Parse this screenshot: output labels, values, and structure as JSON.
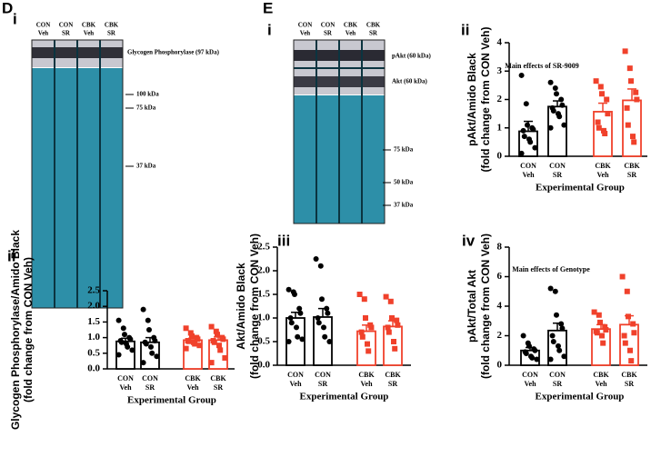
{
  "panels": {
    "D": "D",
    "Di": "i",
    "Dii": "ii",
    "E": "E",
    "Ei": "i",
    "Eii": "ii",
    "Eiii": "iii",
    "Eiv": "iv"
  },
  "blots": [
    {
      "lanes": [
        [
          "CON",
          "Veh"
        ],
        [
          "CON",
          "SR"
        ],
        [
          "CBK",
          "Veh"
        ],
        [
          "CBK",
          "SR"
        ]
      ],
      "bands": [
        "Glycogen Phosphorylase  (97 kDa)"
      ],
      "markers": [
        "100 kDa",
        "75 kDa",
        "37 kDa"
      ]
    },
    {
      "lanes": [
        [
          "CON",
          "Veh"
        ],
        [
          "CON",
          "SR"
        ],
        [
          "CBK",
          "Veh"
        ],
        [
          "CBK",
          "SR"
        ]
      ],
      "bands": [
        "pAkt (60 kDa)",
        "Akt (60 kDa)"
      ],
      "markers": [
        "75 kDa",
        "50 kDa",
        "37 kDa"
      ]
    }
  ],
  "chart_data": [
    {
      "type": "bar",
      "ylabel": [
        "Glycogen Phosphorylase/Amido Black",
        "(fold change from CON Veh)"
      ],
      "xlabel": "Experimental Group",
      "categories": [
        [
          "CON",
          "Veh"
        ],
        [
          "CON",
          "SR"
        ],
        [
          "CBK",
          "Veh"
        ],
        [
          "CBK",
          "SR"
        ]
      ],
      "colors": [
        "#000000",
        "#000000",
        "#f0412b",
        "#f0412b"
      ],
      "markers": [
        "circle",
        "circle",
        "square",
        "square"
      ],
      "values": [
        0.88,
        0.85,
        0.92,
        0.92
      ],
      "errors": [
        0.1,
        0.15,
        0.06,
        0.1
      ],
      "points": [
        [
          1.55,
          1.3,
          1.1,
          1.0,
          0.95,
          0.9,
          0.85,
          0.8,
          0.7,
          0.6,
          0.45
        ],
        [
          1.9,
          1.55,
          1.25,
          1.0,
          0.9,
          0.85,
          0.8,
          0.7,
          0.5,
          0.4,
          0.2
        ],
        [
          1.3,
          1.15,
          1.05,
          1.0,
          0.95,
          0.9,
          0.88,
          0.85,
          0.8,
          0.75,
          0.65
        ],
        [
          1.35,
          1.2,
          1.1,
          1.0,
          0.95,
          0.9,
          0.85,
          0.75,
          0.6,
          0.35,
          0.2
        ]
      ],
      "ylim": [
        0,
        2.5
      ],
      "yticks": [
        {
          "value": 0,
          "label": "0.0"
        },
        0.5,
        {
          "value": 1,
          "label": "1.0"
        },
        1.5,
        {
          "value": 2,
          "label": "2.0"
        },
        2.5
      ]
    },
    {
      "type": "bar",
      "title": "Main effects of SR-9009",
      "ylabel": [
        "pAkt/Amido Black",
        "(fold change from CON Veh)"
      ],
      "xlabel": "Experimental Group",
      "categories": [
        [
          "CON",
          "Veh"
        ],
        [
          "CON",
          "SR"
        ],
        [
          "CBK",
          "Veh"
        ],
        [
          "CBK",
          "SR"
        ]
      ],
      "colors": [
        "#000000",
        "#000000",
        "#f0412b",
        "#f0412b"
      ],
      "markers": [
        "circle",
        "circle",
        "square",
        "square"
      ],
      "values": [
        0.88,
        1.75,
        1.57,
        1.97
      ],
      "errors": [
        0.35,
        0.2,
        0.3,
        0.4
      ],
      "points": [
        [
          2.85,
          1.85,
          1.1,
          1.0,
          0.95,
          0.9,
          0.7,
          0.6,
          0.5,
          0.3,
          0.1
        ],
        [
          2.6,
          2.4,
          2.2,
          2.0,
          1.8,
          1.7,
          1.6,
          1.5,
          1.4,
          1.1,
          1.0
        ],
        [
          2.65,
          2.45,
          2.2,
          2.0,
          1.5,
          1.2,
          1.0,
          0.9,
          0.8
        ],
        [
          3.7,
          3.1,
          2.65,
          2.25,
          2.0,
          1.7,
          1.1,
          0.7,
          0.5
        ]
      ],
      "ylim": [
        0,
        4
      ],
      "yticks": [
        0,
        1,
        2,
        3,
        4
      ]
    },
    {
      "type": "bar",
      "ylabel": [
        "Akt/Amido Black",
        "(fold change from CON Veh)"
      ],
      "xlabel": "Experimental Group",
      "categories": [
        [
          "CON",
          "Veh"
        ],
        [
          "CON",
          "SR"
        ],
        [
          "CBK",
          "Veh"
        ],
        [
          "CBK",
          "SR"
        ]
      ],
      "colors": [
        "#000000",
        "#000000",
        "#f0412b",
        "#f0412b"
      ],
      "markers": [
        "circle",
        "circle",
        "square",
        "square"
      ],
      "values": [
        1.0,
        1.02,
        0.72,
        0.82
      ],
      "errors": [
        0.12,
        0.18,
        0.13,
        0.12
      ],
      "points": [
        [
          1.6,
          1.55,
          1.5,
          1.2,
          1.1,
          1.0,
          0.9,
          0.8,
          0.6,
          0.55,
          0.5
        ],
        [
          2.25,
          2.1,
          1.4,
          1.2,
          1.1,
          1.0,
          0.9,
          0.8,
          0.6,
          0.5
        ],
        [
          1.5,
          1.4,
          1.0,
          0.85,
          0.8,
          0.7,
          0.6,
          0.45,
          0.3
        ],
        [
          1.45,
          1.35,
          1.0,
          0.95,
          0.85,
          0.8,
          0.7,
          0.5,
          0.35
        ]
      ],
      "ylim": [
        0,
        2.5
      ],
      "yticks": [
        {
          "value": 0,
          "label": "0.0"
        },
        0.5,
        {
          "value": 1,
          "label": "1.0"
        },
        1.5,
        {
          "value": 2,
          "label": "2.0"
        },
        2.5
      ]
    },
    {
      "type": "bar",
      "title": "Main effects of Genotype",
      "ylabel": [
        "pAkt/Total Akt",
        "(fold change from CON Veh)"
      ],
      "xlabel": "Experimental Group",
      "categories": [
        [
          "CON",
          "Veh"
        ],
        [
          "CON",
          "SR"
        ],
        [
          "CBK",
          "Veh"
        ],
        [
          "CBK",
          "SR"
        ]
      ],
      "colors": [
        "#000000",
        "#000000",
        "#f0412b",
        "#f0412b"
      ],
      "markers": [
        "circle",
        "circle",
        "square",
        "square"
      ],
      "values": [
        1.0,
        2.35,
        2.45,
        2.75
      ],
      "errors": [
        0.2,
        0.5,
        0.3,
        0.6
      ],
      "points": [
        [
          2.0,
          1.5,
          1.3,
          1.1,
          1.0,
          0.9,
          0.8,
          0.6,
          0.5,
          0.4
        ],
        [
          5.2,
          5.0,
          3.4,
          2.8,
          2.5,
          2.0,
          1.6,
          1.3,
          1.0,
          0.6,
          0.4
        ],
        [
          3.6,
          3.4,
          2.9,
          2.6,
          2.4,
          2.3,
          2.2,
          2.0,
          1.5
        ],
        [
          6.0,
          5.0,
          3.3,
          2.8,
          2.2,
          2.0,
          1.5,
          1.0,
          0.3
        ]
      ],
      "ylim": [
        0,
        8
      ],
      "yticks": [
        0,
        2,
        4,
        6,
        8
      ]
    }
  ]
}
